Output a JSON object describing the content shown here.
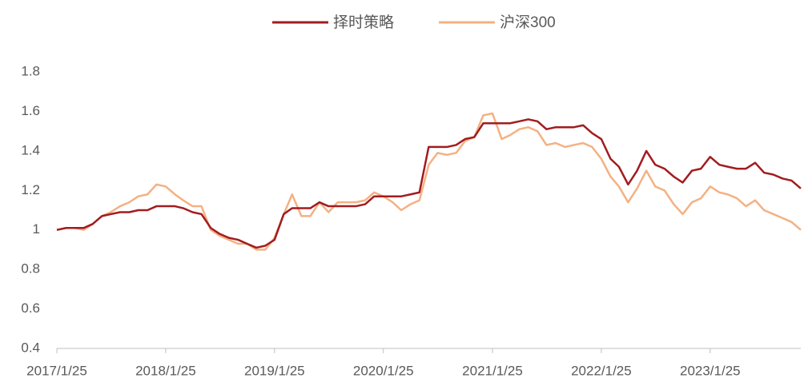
{
  "chart_data": {
    "type": "line",
    "x": [
      "2017/1/25",
      "2017/2/25",
      "2017/3/25",
      "2017/4/25",
      "2017/5/25",
      "2017/6/25",
      "2017/7/25",
      "2017/8/25",
      "2017/9/25",
      "2017/10/25",
      "2017/11/25",
      "2017/12/25",
      "2018/1/25",
      "2018/2/25",
      "2018/3/25",
      "2018/4/25",
      "2018/5/25",
      "2018/6/25",
      "2018/7/25",
      "2018/8/25",
      "2018/9/25",
      "2018/10/25",
      "2018/11/25",
      "2018/12/25",
      "2019/1/25",
      "2019/2/25",
      "2019/3/25",
      "2019/4/25",
      "2019/5/25",
      "2019/6/25",
      "2019/7/25",
      "2019/8/25",
      "2019/9/25",
      "2019/10/25",
      "2019/11/25",
      "2019/12/25",
      "2020/1/25",
      "2020/2/25",
      "2020/3/25",
      "2020/4/25",
      "2020/5/25",
      "2020/6/25",
      "2020/7/25",
      "2020/8/25",
      "2020/9/25",
      "2020/10/25",
      "2020/11/25",
      "2020/12/25",
      "2021/1/25",
      "2021/2/25",
      "2021/3/25",
      "2021/4/25",
      "2021/5/25",
      "2021/6/25",
      "2021/7/25",
      "2021/8/25",
      "2021/9/25",
      "2021/10/25",
      "2021/11/25",
      "2021/12/25",
      "2022/1/25",
      "2022/2/25",
      "2022/3/25",
      "2022/4/25",
      "2022/5/25",
      "2022/6/25",
      "2022/7/25",
      "2022/8/25",
      "2022/9/25",
      "2022/10/25",
      "2022/11/25",
      "2022/12/25",
      "2023/1/25",
      "2023/2/25",
      "2023/3/25",
      "2023/4/25",
      "2023/5/25",
      "2023/6/25",
      "2023/7/25",
      "2023/8/25",
      "2023/9/25",
      "2023/10/25",
      "2023/11/25"
    ],
    "series": [
      {
        "name": "择时策略",
        "color": "#a11c1f",
        "values": [
          1.0,
          1.01,
          1.01,
          1.01,
          1.03,
          1.07,
          1.08,
          1.09,
          1.09,
          1.1,
          1.1,
          1.12,
          1.12,
          1.12,
          1.11,
          1.09,
          1.08,
          1.01,
          0.98,
          0.96,
          0.95,
          0.93,
          0.91,
          0.92,
          0.95,
          1.08,
          1.11,
          1.11,
          1.11,
          1.14,
          1.12,
          1.12,
          1.12,
          1.12,
          1.13,
          1.17,
          1.17,
          1.17,
          1.17,
          1.18,
          1.19,
          1.42,
          1.42,
          1.42,
          1.43,
          1.46,
          1.47,
          1.54,
          1.54,
          1.54,
          1.54,
          1.55,
          1.56,
          1.55,
          1.51,
          1.52,
          1.52,
          1.52,
          1.53,
          1.49,
          1.46,
          1.36,
          1.32,
          1.23,
          1.3,
          1.4,
          1.33,
          1.31,
          1.27,
          1.24,
          1.3,
          1.31,
          1.37,
          1.33,
          1.32,
          1.31,
          1.31,
          1.34,
          1.29,
          1.28,
          1.26,
          1.25,
          1.21
        ]
      },
      {
        "name": "沪深300",
        "color": "#f4b183",
        "values": [
          1.0,
          1.01,
          1.01,
          1.0,
          1.03,
          1.07,
          1.09,
          1.12,
          1.14,
          1.17,
          1.18,
          1.23,
          1.22,
          1.18,
          1.15,
          1.12,
          1.12,
          1.0,
          0.97,
          0.95,
          0.93,
          0.93,
          0.9,
          0.9,
          0.96,
          1.08,
          1.18,
          1.07,
          1.07,
          1.14,
          1.09,
          1.14,
          1.14,
          1.14,
          1.15,
          1.19,
          1.17,
          1.14,
          1.1,
          1.13,
          1.15,
          1.33,
          1.39,
          1.38,
          1.39,
          1.45,
          1.47,
          1.58,
          1.59,
          1.46,
          1.48,
          1.51,
          1.52,
          1.5,
          1.43,
          1.44,
          1.42,
          1.43,
          1.44,
          1.42,
          1.36,
          1.27,
          1.22,
          1.14,
          1.21,
          1.3,
          1.22,
          1.2,
          1.13,
          1.08,
          1.14,
          1.16,
          1.22,
          1.19,
          1.18,
          1.16,
          1.12,
          1.15,
          1.1,
          1.08,
          1.06,
          1.04,
          1.0
        ]
      }
    ],
    "xlim": [
      "2017/1/25",
      "2023/11/25"
    ],
    "xticks": [
      "2017/1/25",
      "2018/1/25",
      "2019/1/25",
      "2020/1/25",
      "2021/1/25",
      "2022/1/25",
      "2023/1/25"
    ],
    "ylim": [
      0.4,
      1.8
    ],
    "yticks": [
      0.4,
      0.6,
      0.8,
      1,
      1.2,
      1.4,
      1.6,
      1.8
    ],
    "grid": false,
    "legend": "top"
  }
}
